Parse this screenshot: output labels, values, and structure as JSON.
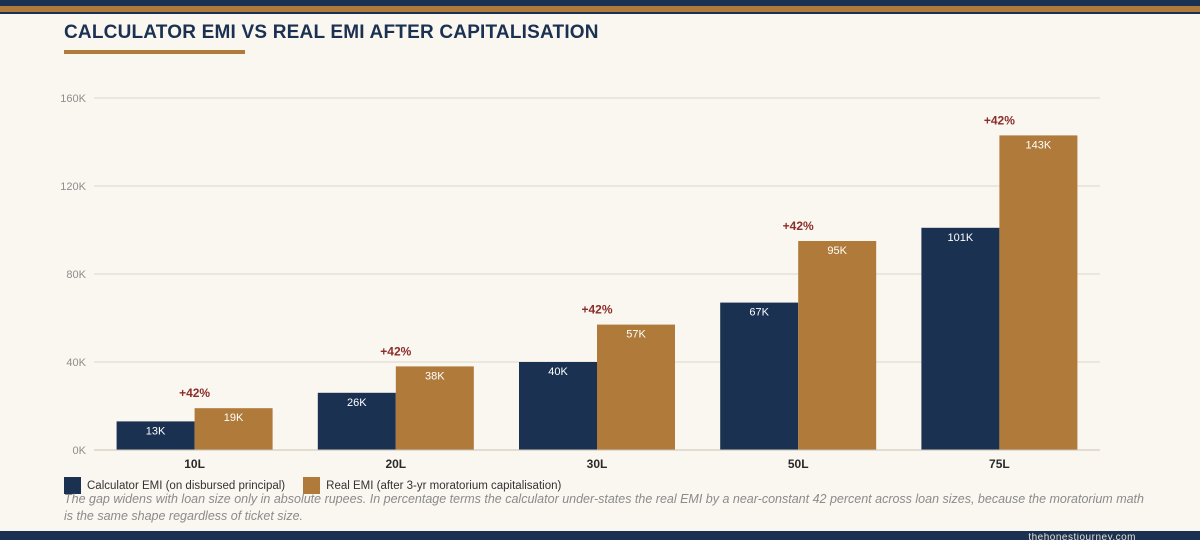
{
  "page": {
    "title": "CALCULATOR EMI VS REAL EMI AFTER CAPITALISATION",
    "caption": "The gap widens with loan size only in absolute rupees. In percentage terms the calculator under-states the real EMI by a near-constant 42 percent across loan sizes, because the moratorium math is the same shape regardless of ticket size.",
    "footer": "thehonestjourney.com"
  },
  "colors": {
    "navy": "#1b3152",
    "gold": "#b07a3b",
    "annotation": "#8b2e2a",
    "grid": "#dcd6cc",
    "axis_text": "#8e8e8e",
    "category_text": "#2a2a2a"
  },
  "chart_data": {
    "type": "bar",
    "title": "CALCULATOR EMI VS REAL EMI AFTER CAPITALISATION",
    "xlabel": "",
    "ylabel": "",
    "categories": [
      "10L",
      "20L",
      "30L",
      "50L",
      "75L"
    ],
    "series": [
      {
        "name": "Calculator EMI (on disbursed principal)",
        "color": "#1b3152",
        "values": [
          13,
          26,
          40,
          67,
          101
        ],
        "labels": [
          "13K",
          "26K",
          "40K",
          "67K",
          "101K"
        ]
      },
      {
        "name": "Real EMI (after 3-yr moratorium capitalisation)",
        "color": "#b07a3b",
        "values": [
          19,
          38,
          57,
          95,
          143
        ],
        "labels": [
          "19K",
          "38K",
          "57K",
          "95K",
          "143K"
        ]
      }
    ],
    "annotations": [
      "+42%",
      "+42%",
      "+42%",
      "+42%",
      "+42%"
    ],
    "ylim": [
      0,
      160
    ],
    "yticks": [
      0,
      40,
      80,
      120,
      160
    ],
    "ytick_labels": [
      "0K",
      "40K",
      "80K",
      "120K",
      "160K"
    ],
    "grid": true,
    "legend": "bottom-left"
  }
}
